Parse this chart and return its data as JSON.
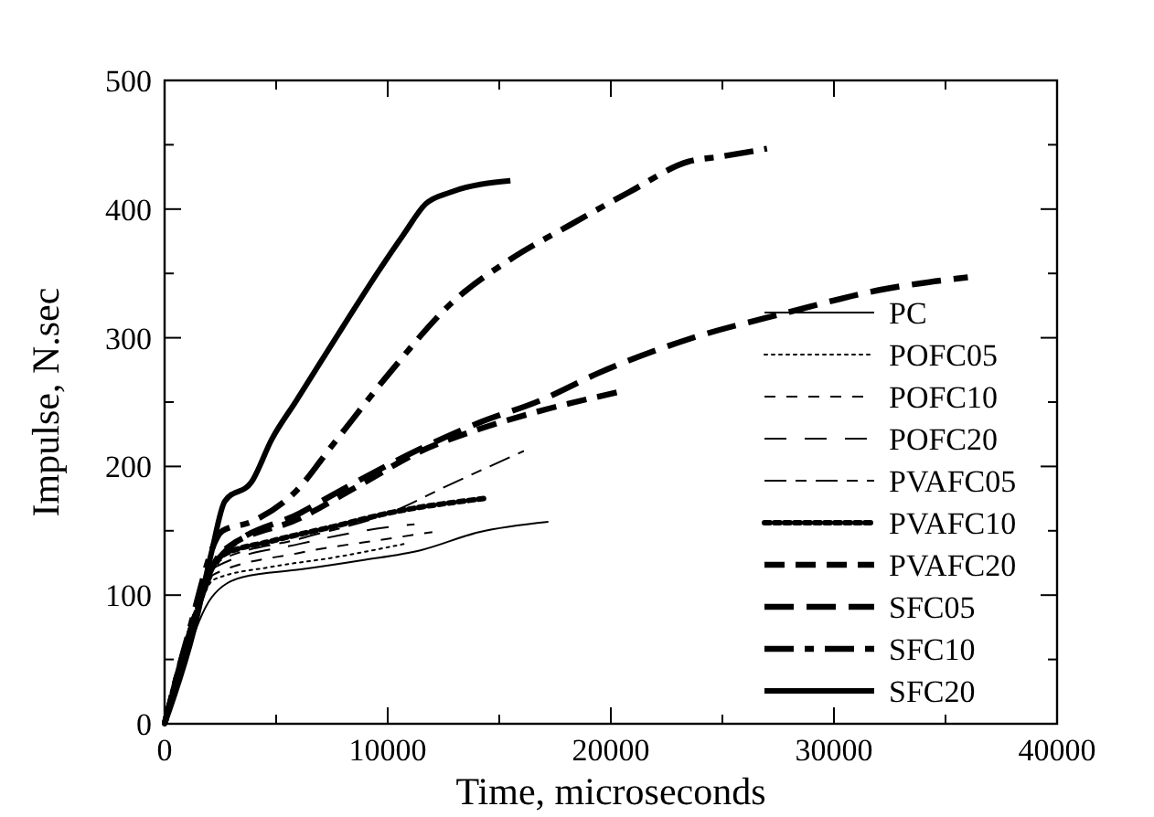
{
  "chart_data": {
    "type": "line",
    "xlabel": "Time, microseconds",
    "ylabel": "Impulse, N.sec",
    "xlim": [
      0,
      40000
    ],
    "ylim": [
      0,
      500
    ],
    "xticks": [
      0,
      {
        "value": 5000,
        "label": null
      },
      10000,
      {
        "value": 15000,
        "label": null
      },
      20000,
      {
        "value": 25000,
        "label": null
      },
      30000,
      {
        "value": 35000,
        "label": null
      },
      40000
    ],
    "yticks": [
      0,
      {
        "value": 50,
        "label": null
      },
      100,
      {
        "value": 150,
        "label": null
      },
      200,
      {
        "value": 250,
        "label": null
      },
      300,
      {
        "value": 350,
        "label": null
      },
      400,
      {
        "value": 450,
        "label": null
      },
      500
    ],
    "grid": false,
    "legend": "right",
    "marker": "none",
    "series": [
      {
        "name": "PC",
        "color": "#000000",
        "line_style": "solid",
        "x": [
          0,
          1000,
          2100,
          3500,
          6100,
          8800,
          11500,
          14100,
          17200
        ],
        "values": [
          0,
          55,
          98,
          114,
          120,
          127,
          135,
          149,
          157
        ]
      },
      {
        "name": "POFC05",
        "color": "#000000",
        "line_style": "dotted",
        "x": [
          0,
          1000,
          2200,
          4800,
          7500,
          10800
        ],
        "values": [
          0,
          57,
          112,
          122,
          129,
          140
        ]
      },
      {
        "name": "POFC10",
        "color": "#000000",
        "line_style": "dashed",
        "x": [
          0,
          1000,
          2200,
          6100,
          10100,
          12000
        ],
        "values": [
          0,
          58,
          116,
          133,
          144,
          149
        ]
      },
      {
        "name": "POFC20",
        "color": "#000000",
        "line_style": "dashed",
        "x": [
          0,
          1000,
          2300,
          6100,
          10100,
          11200
        ],
        "values": [
          0,
          60,
          122,
          140,
          153,
          155
        ]
      },
      {
        "name": "PVAFC05",
        "color": "#000000",
        "line_style": "dashed",
        "x": [
          0,
          1000,
          2400,
          6100,
          10100,
          12800,
          16100
        ],
        "values": [
          0,
          62,
          126,
          144,
          164,
          186,
          212
        ]
      },
      {
        "name": "PVAFC10",
        "color": "#000000",
        "line_style": "dotted",
        "x": [
          0,
          1000,
          2500,
          4800,
          7500,
          10100,
          14300
        ],
        "values": [
          0,
          63,
          130,
          142,
          153,
          164,
          175
        ]
      },
      {
        "name": "PVAFC20",
        "color": "#000000",
        "line_style": "dashed",
        "x": [
          0,
          1000,
          2600,
          6100,
          8800,
          11500,
          14100,
          16800,
          20400
        ],
        "values": [
          0,
          64,
          134,
          160,
          186,
          212,
          229,
          243,
          258
        ]
      },
      {
        "name": "SFC05",
        "color": "#000000",
        "line_style": "dashed",
        "x": [
          0,
          1000,
          2600,
          6100,
          8800,
          11500,
          14100,
          16800,
          19500,
          23500,
          28000,
          32000,
          36000
        ],
        "values": [
          0,
          64,
          132,
          164,
          190,
          214,
          234,
          251,
          273,
          299,
          320,
          337,
          347
        ]
      },
      {
        "name": "SFC10",
        "color": "#000000",
        "line_style": "dashed",
        "x": [
          0,
          1000,
          2600,
          3900,
          5900,
          7500,
          10100,
          12800,
          15500,
          18100,
          20800,
          23500,
          25000,
          27000
        ],
        "values": [
          0,
          66,
          150,
          157,
          181,
          216,
          273,
          326,
          361,
          387,
          413,
          437,
          441,
          447
        ]
      },
      {
        "name": "SFC20",
        "color": "#000000",
        "line_style": "solid",
        "x": [
          0,
          1300,
          2100,
          2700,
          3900,
          4800,
          5900,
          8300,
          9600,
          10700,
          11700,
          12800,
          15500
        ],
        "values": [
          0,
          72,
          133,
          173,
          188,
          221,
          251,
          317,
          352,
          380,
          404,
          413,
          422
        ]
      }
    ]
  }
}
